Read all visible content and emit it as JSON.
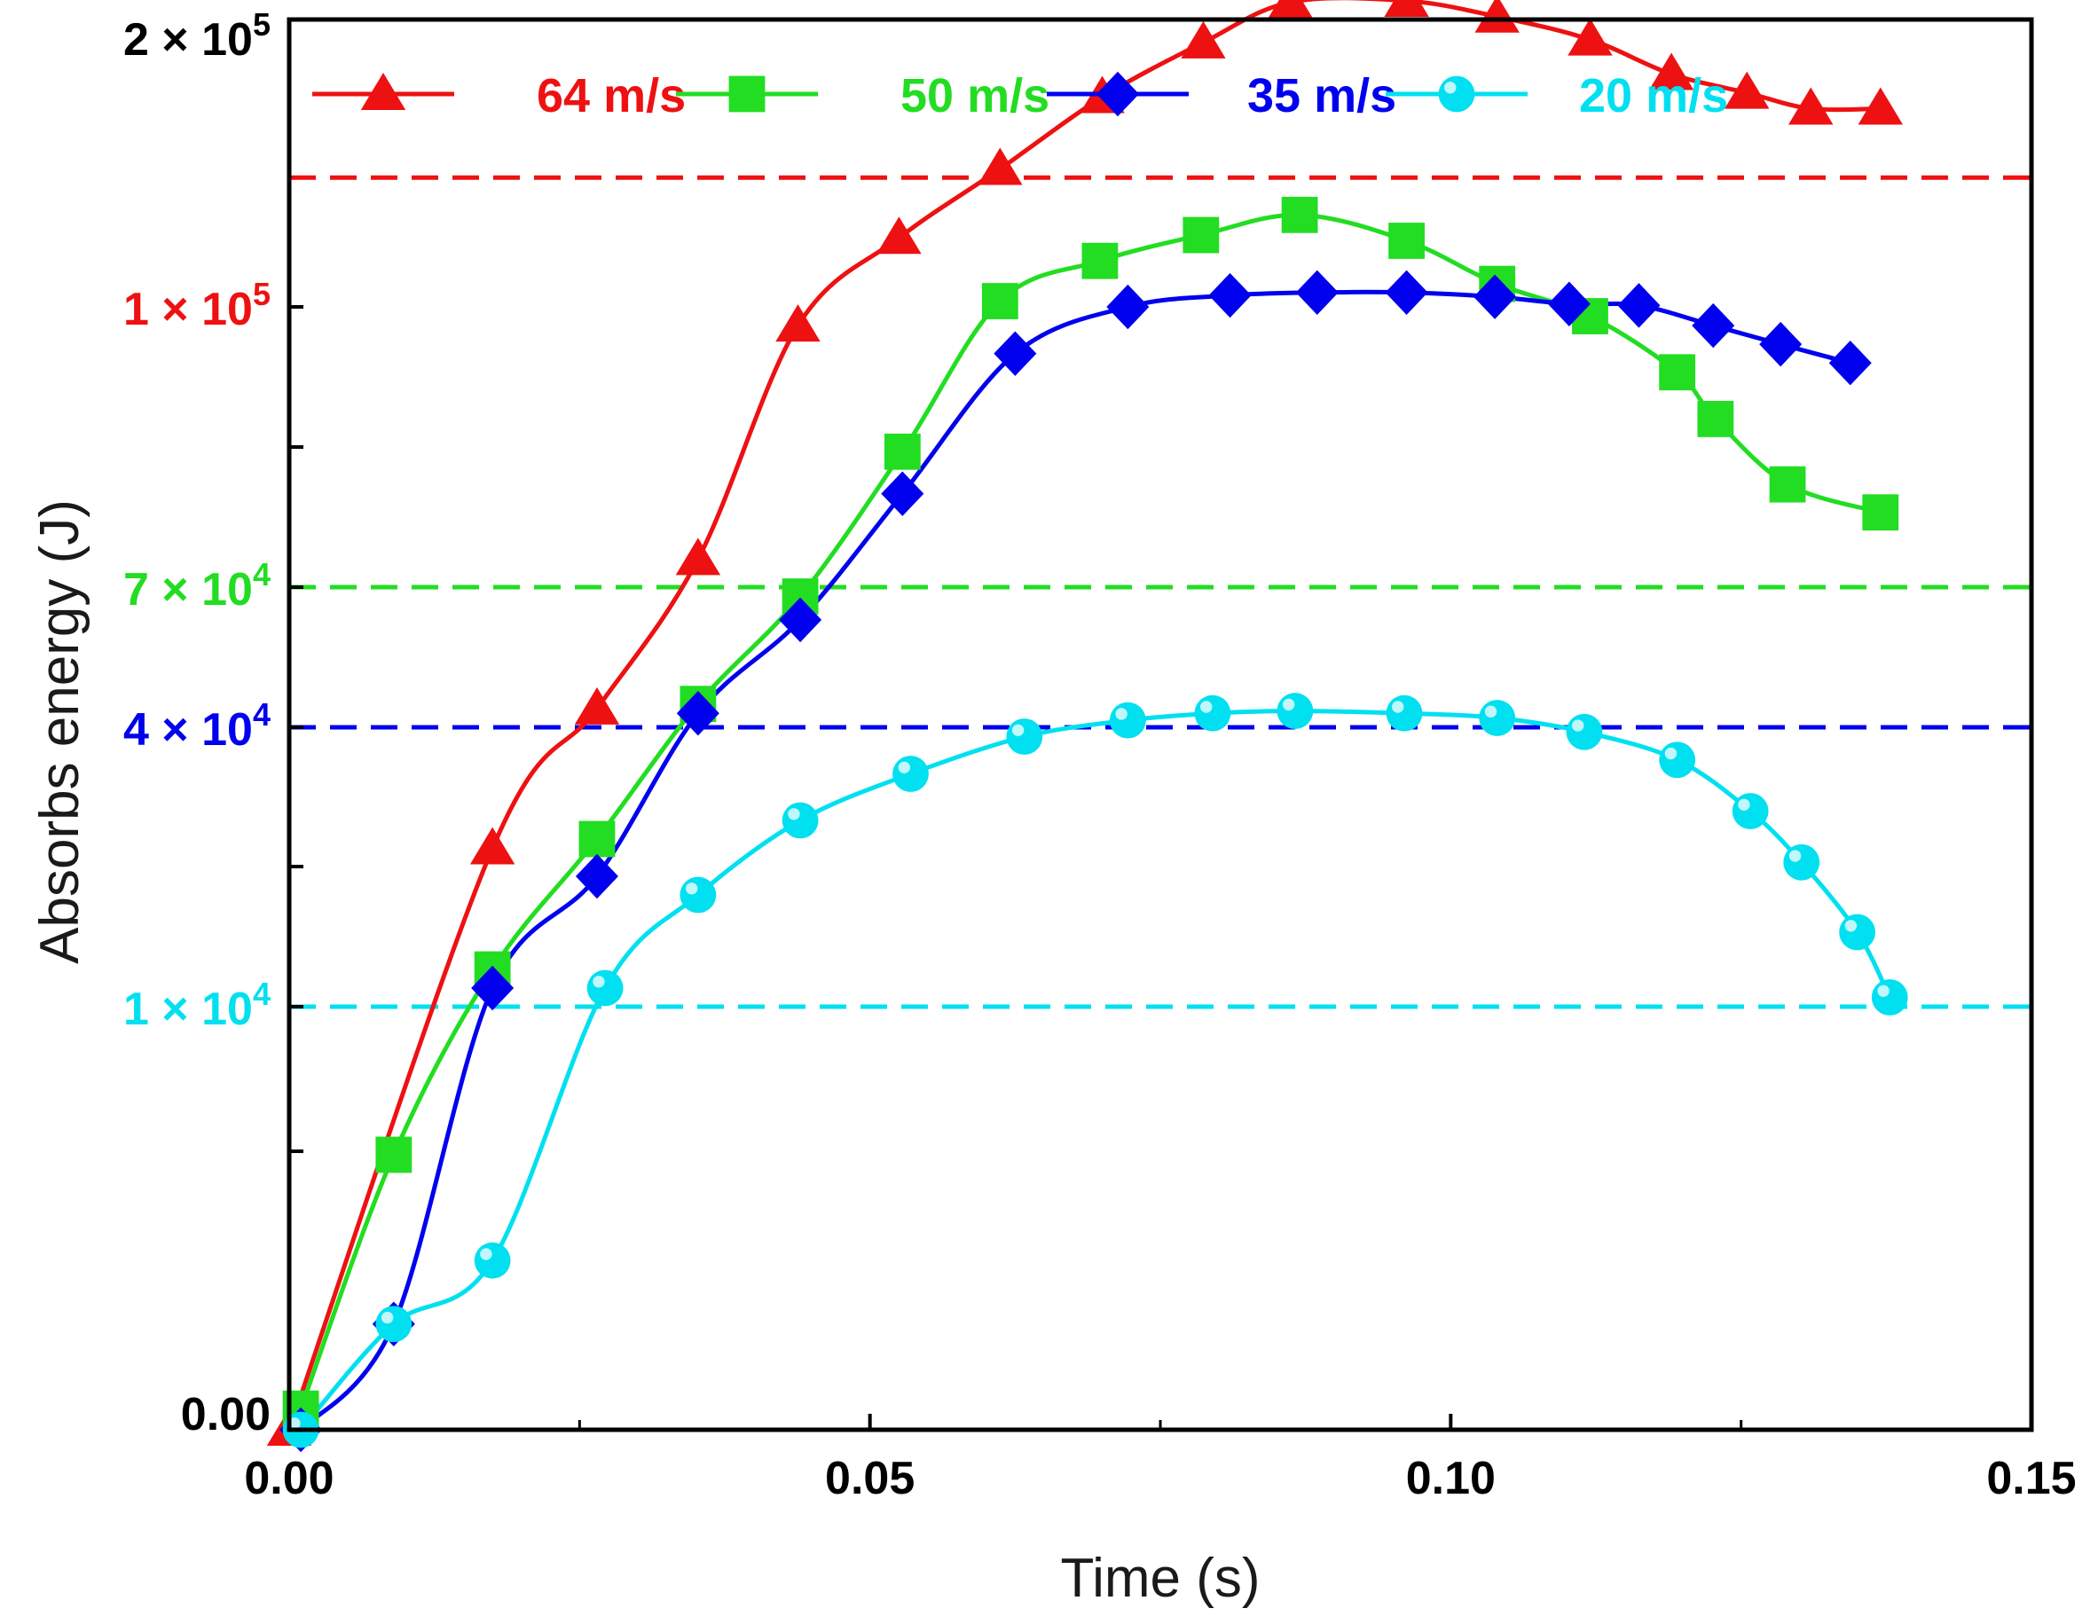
{
  "chart_data": {
    "type": "line",
    "xlabel": "Time (s)",
    "ylabel": "Absorbs energy (J)",
    "xlim": [
      0,
      0.15
    ],
    "ylim": [
      0,
      200000
    ],
    "x_ticks": [
      0,
      0.05,
      0.1,
      0.15
    ],
    "x_tick_labels": [
      "0.00",
      "0.05",
      "0.10",
      "0.15"
    ],
    "y_tick_labels": [
      {
        "value": 0,
        "mantissa": "0.00",
        "exponent": "",
        "color": "#000000"
      },
      {
        "value": 10000,
        "mantissa": "1 × 10",
        "exponent": "4",
        "color": "#00e0f0"
      },
      {
        "value": 40000,
        "mantissa": "4 × 10",
        "exponent": "4",
        "color": "#0000ee"
      },
      {
        "value": 70000,
        "mantissa": "7 × 10",
        "exponent": "4",
        "color": "#22dd22"
      },
      {
        "value": 100000,
        "mantissa": "1 × 10",
        "exponent": "5",
        "color": "#ee1111"
      },
      {
        "value": 200000,
        "mantissa": "2 × 10",
        "exponent": "5",
        "color": "#000000"
      }
    ],
    "reference_lines": [
      {
        "value": 145000,
        "color": "#ee1111"
      },
      {
        "value": 70000,
        "color": "#22dd22"
      },
      {
        "value": 40000,
        "color": "#0000ee"
      },
      {
        "value": 10000,
        "color": "#00e0f0"
      }
    ],
    "legend_position": "top",
    "series": [
      {
        "name": "64 m/s",
        "color": "#ee1111",
        "marker": "triangle",
        "x": [
          0,
          0.0175,
          0.0265,
          0.0352,
          0.0438,
          0.0525,
          0.0612,
          0.07,
          0.0787,
          0.0862,
          0.0962,
          0.104,
          0.112,
          0.119,
          0.1255,
          0.131,
          0.137
        ],
        "y": [
          0,
          27000,
          44000,
          73000,
          98000,
          124000,
          148000,
          173000,
          192000,
          206000,
          206500,
          201000,
          193000,
          181000,
          174500,
          169000,
          169000
        ]
      },
      {
        "name": "50 m/s",
        "color": "#22dd22",
        "marker": "square",
        "x": [
          0.001,
          0.009,
          0.0175,
          0.0265,
          0.0352,
          0.044,
          0.0528,
          0.0612,
          0.0698,
          0.0785,
          0.087,
          0.0962,
          0.104,
          0.112,
          0.1195,
          0.1228,
          0.129,
          0.137
        ],
        "y": [
          500,
          6500,
          14000,
          28000,
          45000,
          68000,
          84500,
          102000,
          116000,
          125000,
          132000,
          123000,
          108000,
          99000,
          93000,
          88000,
          81000,
          78000
        ]
      },
      {
        "name": "35 m/s",
        "color": "#0000ee",
        "marker": "diamond",
        "x": [
          0.001,
          0.009,
          0.0175,
          0.0265,
          0.0352,
          0.044,
          0.0528,
          0.0625,
          0.0722,
          0.081,
          0.0885,
          0.0962,
          0.1038,
          0.1102,
          0.1162,
          0.1226,
          0.1284,
          0.1344
        ],
        "y": [
          0,
          2500,
          12000,
          24000,
          43000,
          63000,
          80000,
          95000,
          100000,
          104000,
          105000,
          105000,
          103500,
          101000,
          100500,
          98000,
          96000,
          94000
        ]
      },
      {
        "name": "20 m/s",
        "color": "#00e0f0",
        "marker": "circle",
        "x": [
          0.001,
          0.009,
          0.0175,
          0.0272,
          0.0352,
          0.044,
          0.0535,
          0.0633,
          0.0722,
          0.0795,
          0.0866,
          0.096,
          0.104,
          0.1115,
          0.1195,
          0.1258,
          0.1302,
          0.135,
          0.1378
        ],
        "y": [
          0,
          2500,
          4000,
          12000,
          22000,
          30000,
          35000,
          39000,
          41500,
          43000,
          43500,
          43000,
          42000,
          39500,
          36500,
          31000,
          25500,
          18000,
          11000
        ]
      }
    ]
  }
}
